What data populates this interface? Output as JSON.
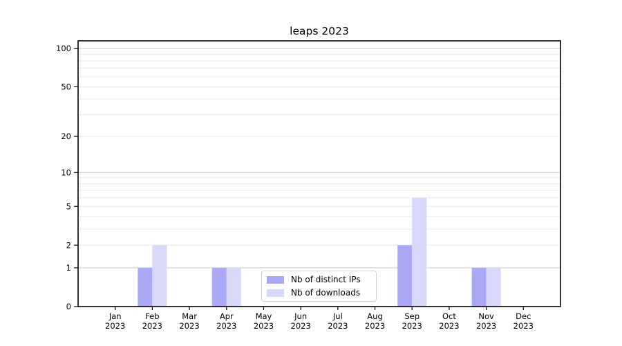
{
  "chart_data": {
    "type": "bar",
    "title": "leaps 2023",
    "categories": [
      "Jan 2023",
      "Feb 2023",
      "Mar 2023",
      "Apr 2023",
      "May 2023",
      "Jun 2023",
      "Jul 2023",
      "Aug 2023",
      "Sep 2023",
      "Oct 2023",
      "Nov 2023",
      "Dec 2023"
    ],
    "series": [
      {
        "name": "Nb of distinct IPs",
        "color": "#a9a9f6",
        "values": [
          0,
          1,
          0,
          1,
          0,
          0,
          0,
          0,
          2,
          0,
          1,
          0
        ]
      },
      {
        "name": "Nb of downloads",
        "color": "#d8d8f8",
        "values": [
          0,
          2,
          0,
          1,
          0,
          0,
          0,
          0,
          6,
          0,
          1,
          0
        ]
      }
    ],
    "xlabel": "",
    "ylabel": "",
    "yscale": "log1p",
    "ylim": [
      0,
      115
    ],
    "y_ticks": [
      0,
      1,
      2,
      5,
      10,
      20,
      50,
      100
    ],
    "grid_major": [
      1,
      10,
      100
    ],
    "grid_minor": [
      2,
      3,
      4,
      5,
      6,
      7,
      8,
      9,
      20,
      30,
      40,
      50,
      60,
      70,
      80,
      90
    ],
    "grid": "on",
    "legend_position": "lower center",
    "colors": {
      "grid_major": "#c6c6c6",
      "grid_minor": "#eaeaea",
      "axis": "#000000",
      "background": "#ffffff",
      "legend_border": "#d2d2d2"
    }
  }
}
